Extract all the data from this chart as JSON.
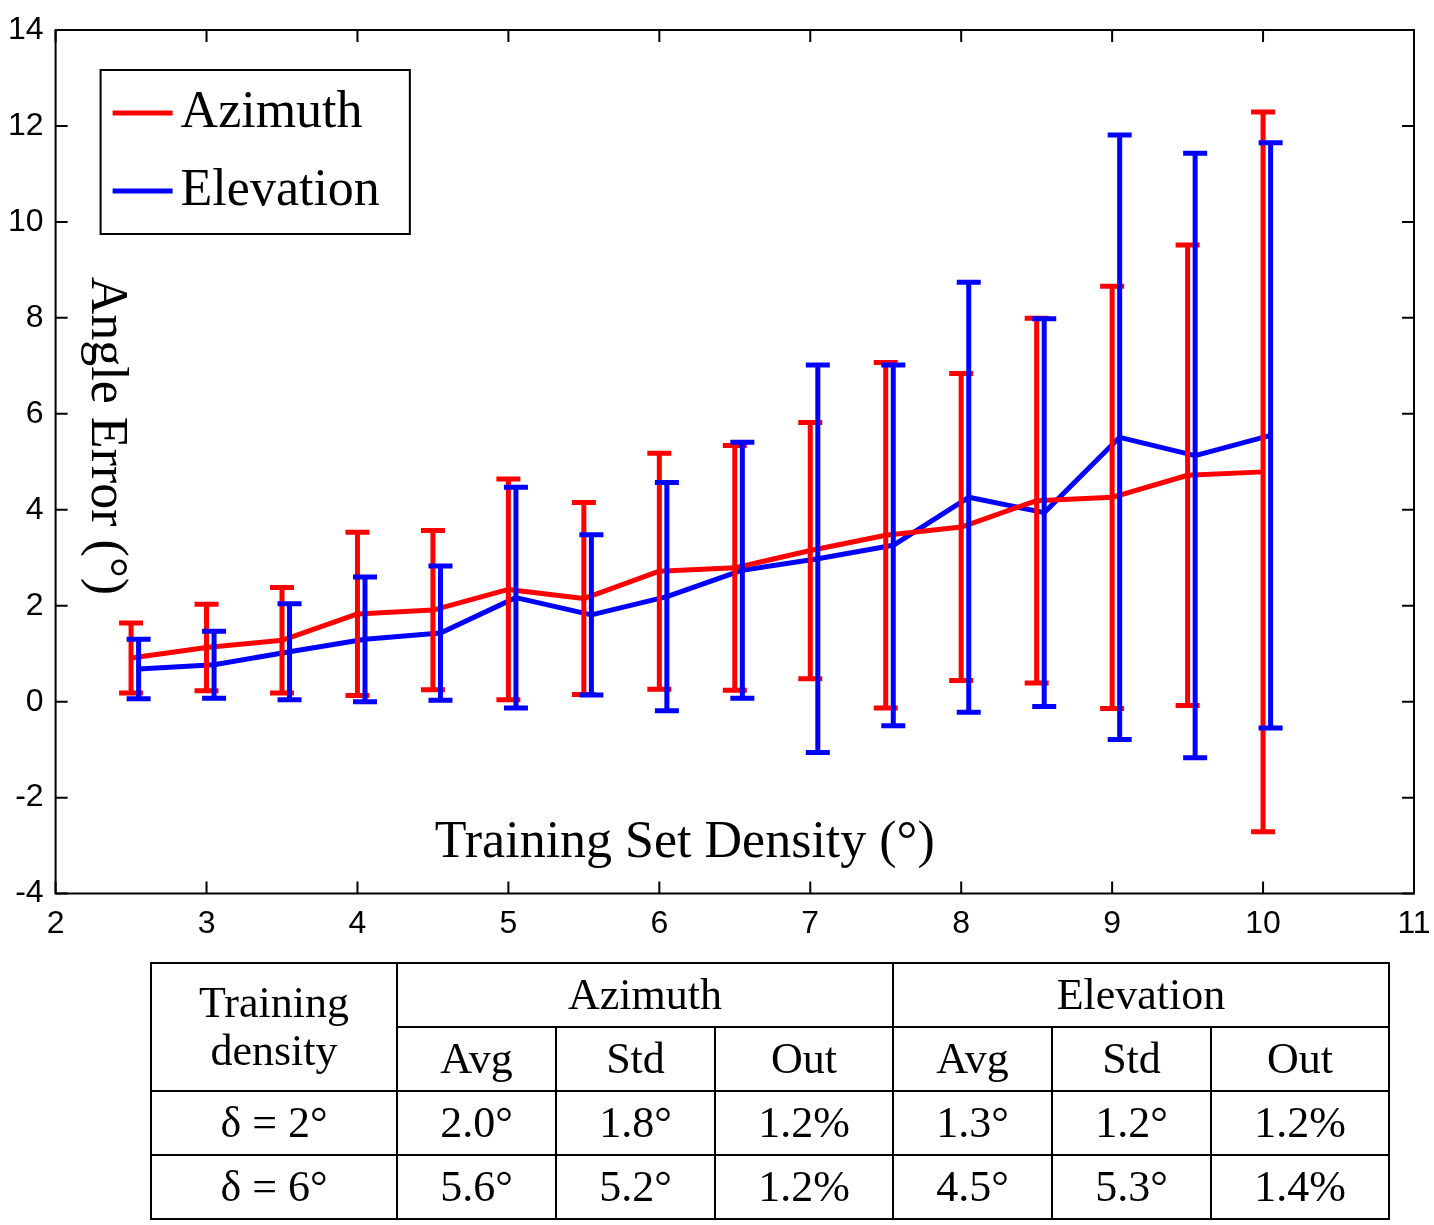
{
  "chart_data": [
    {
      "type": "line",
      "xlabel": "Training Set Density (°)",
      "ylabel": "Angle Error (°)",
      "xlim": [
        2,
        11
      ],
      "xticks": [
        2,
        3,
        4,
        5,
        6,
        7,
        8,
        9,
        10,
        11
      ],
      "ylim": [
        -4,
        14
      ],
      "yticks": [
        -4,
        -2,
        0,
        2,
        4,
        6,
        8,
        10,
        12,
        14
      ],
      "legend": "top left",
      "series": [
        {
          "name": "Azimuth",
          "color": "#ff0000",
          "x": [
            2.5,
            3,
            3.5,
            4,
            4.5,
            5,
            5.5,
            6,
            6.5,
            7,
            7.5,
            8,
            8.5,
            9,
            9.5,
            10
          ],
          "values": [
            0.91,
            1.13,
            1.28,
            1.83,
            1.91,
            2.34,
            2.15,
            2.72,
            2.79,
            3.15,
            3.47,
            3.64,
            4.19,
            4.26,
            4.72,
            4.79
          ],
          "errors": [
            0.73,
            0.9,
            1.1,
            1.7,
            1.66,
            2.3,
            2.0,
            2.46,
            2.55,
            2.67,
            3.6,
            3.2,
            3.8,
            4.4,
            4.8,
            7.5
          ]
        },
        {
          "name": "Elevation",
          "color": "#0000ff",
          "x": [
            2.55,
            3.05,
            3.55,
            4.05,
            4.55,
            5.05,
            5.55,
            6.05,
            6.55,
            7.05,
            7.55,
            8.05,
            8.55,
            9.05,
            9.55,
            10.05
          ],
          "values": [
            0.68,
            0.77,
            1.04,
            1.3,
            1.43,
            2.17,
            1.81,
            2.19,
            2.74,
            2.98,
            3.26,
            4.26,
            3.94,
            5.51,
            5.13,
            5.55
          ],
          "errors": [
            0.62,
            0.7,
            1.0,
            1.3,
            1.4,
            2.3,
            1.67,
            2.38,
            2.67,
            4.04,
            3.76,
            4.48,
            4.04,
            6.3,
            6.3,
            6.1
          ]
        }
      ]
    },
    {
      "type": "other",
      "annotations": [
        "Training density",
        "Azimuth",
        "Elevation",
        "Avg",
        "Std",
        "Out",
        "Avg",
        "Std",
        "Out",
        "δ = 2°",
        "2.0°",
        "1.8°",
        "1.2%",
        "1.3°",
        "1.2°",
        "1.2%",
        "δ = 6°",
        "5.6°",
        "5.2°",
        "1.2%",
        "4.5°",
        "5.3°",
        "1.4%"
      ]
    }
  ]
}
